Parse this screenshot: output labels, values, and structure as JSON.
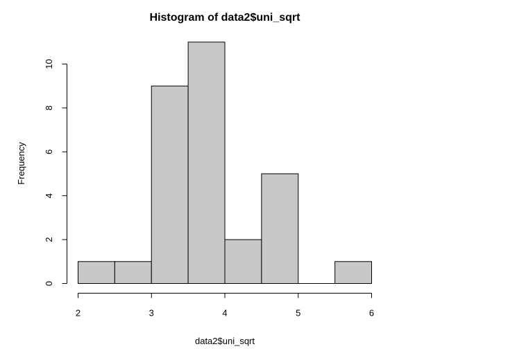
{
  "chart_data": {
    "type": "bar",
    "title": "Histogram of data2$uni_sqrt",
    "xlabel": "data2$uni_sqrt",
    "ylabel": "Frequency",
    "bins": [
      {
        "start": 2.0,
        "end": 2.5,
        "count": 1
      },
      {
        "start": 2.5,
        "end": 3.0,
        "count": 1
      },
      {
        "start": 3.0,
        "end": 3.5,
        "count": 9
      },
      {
        "start": 3.5,
        "end": 4.0,
        "count": 11
      },
      {
        "start": 4.0,
        "end": 4.5,
        "count": 2
      },
      {
        "start": 4.5,
        "end": 5.0,
        "count": 5
      },
      {
        "start": 5.0,
        "end": 5.5,
        "count": 0
      },
      {
        "start": 5.5,
        "end": 6.0,
        "count": 1
      }
    ],
    "xlim": [
      2,
      6
    ],
    "ylim": [
      0,
      11
    ],
    "x_ticks": [
      "2",
      "3",
      "4",
      "5",
      "6"
    ],
    "y_ticks": [
      "0",
      "2",
      "4",
      "6",
      "8",
      "10"
    ],
    "grid": false,
    "bar_fill": "#c8c8c8",
    "bar_stroke": "#000000"
  }
}
